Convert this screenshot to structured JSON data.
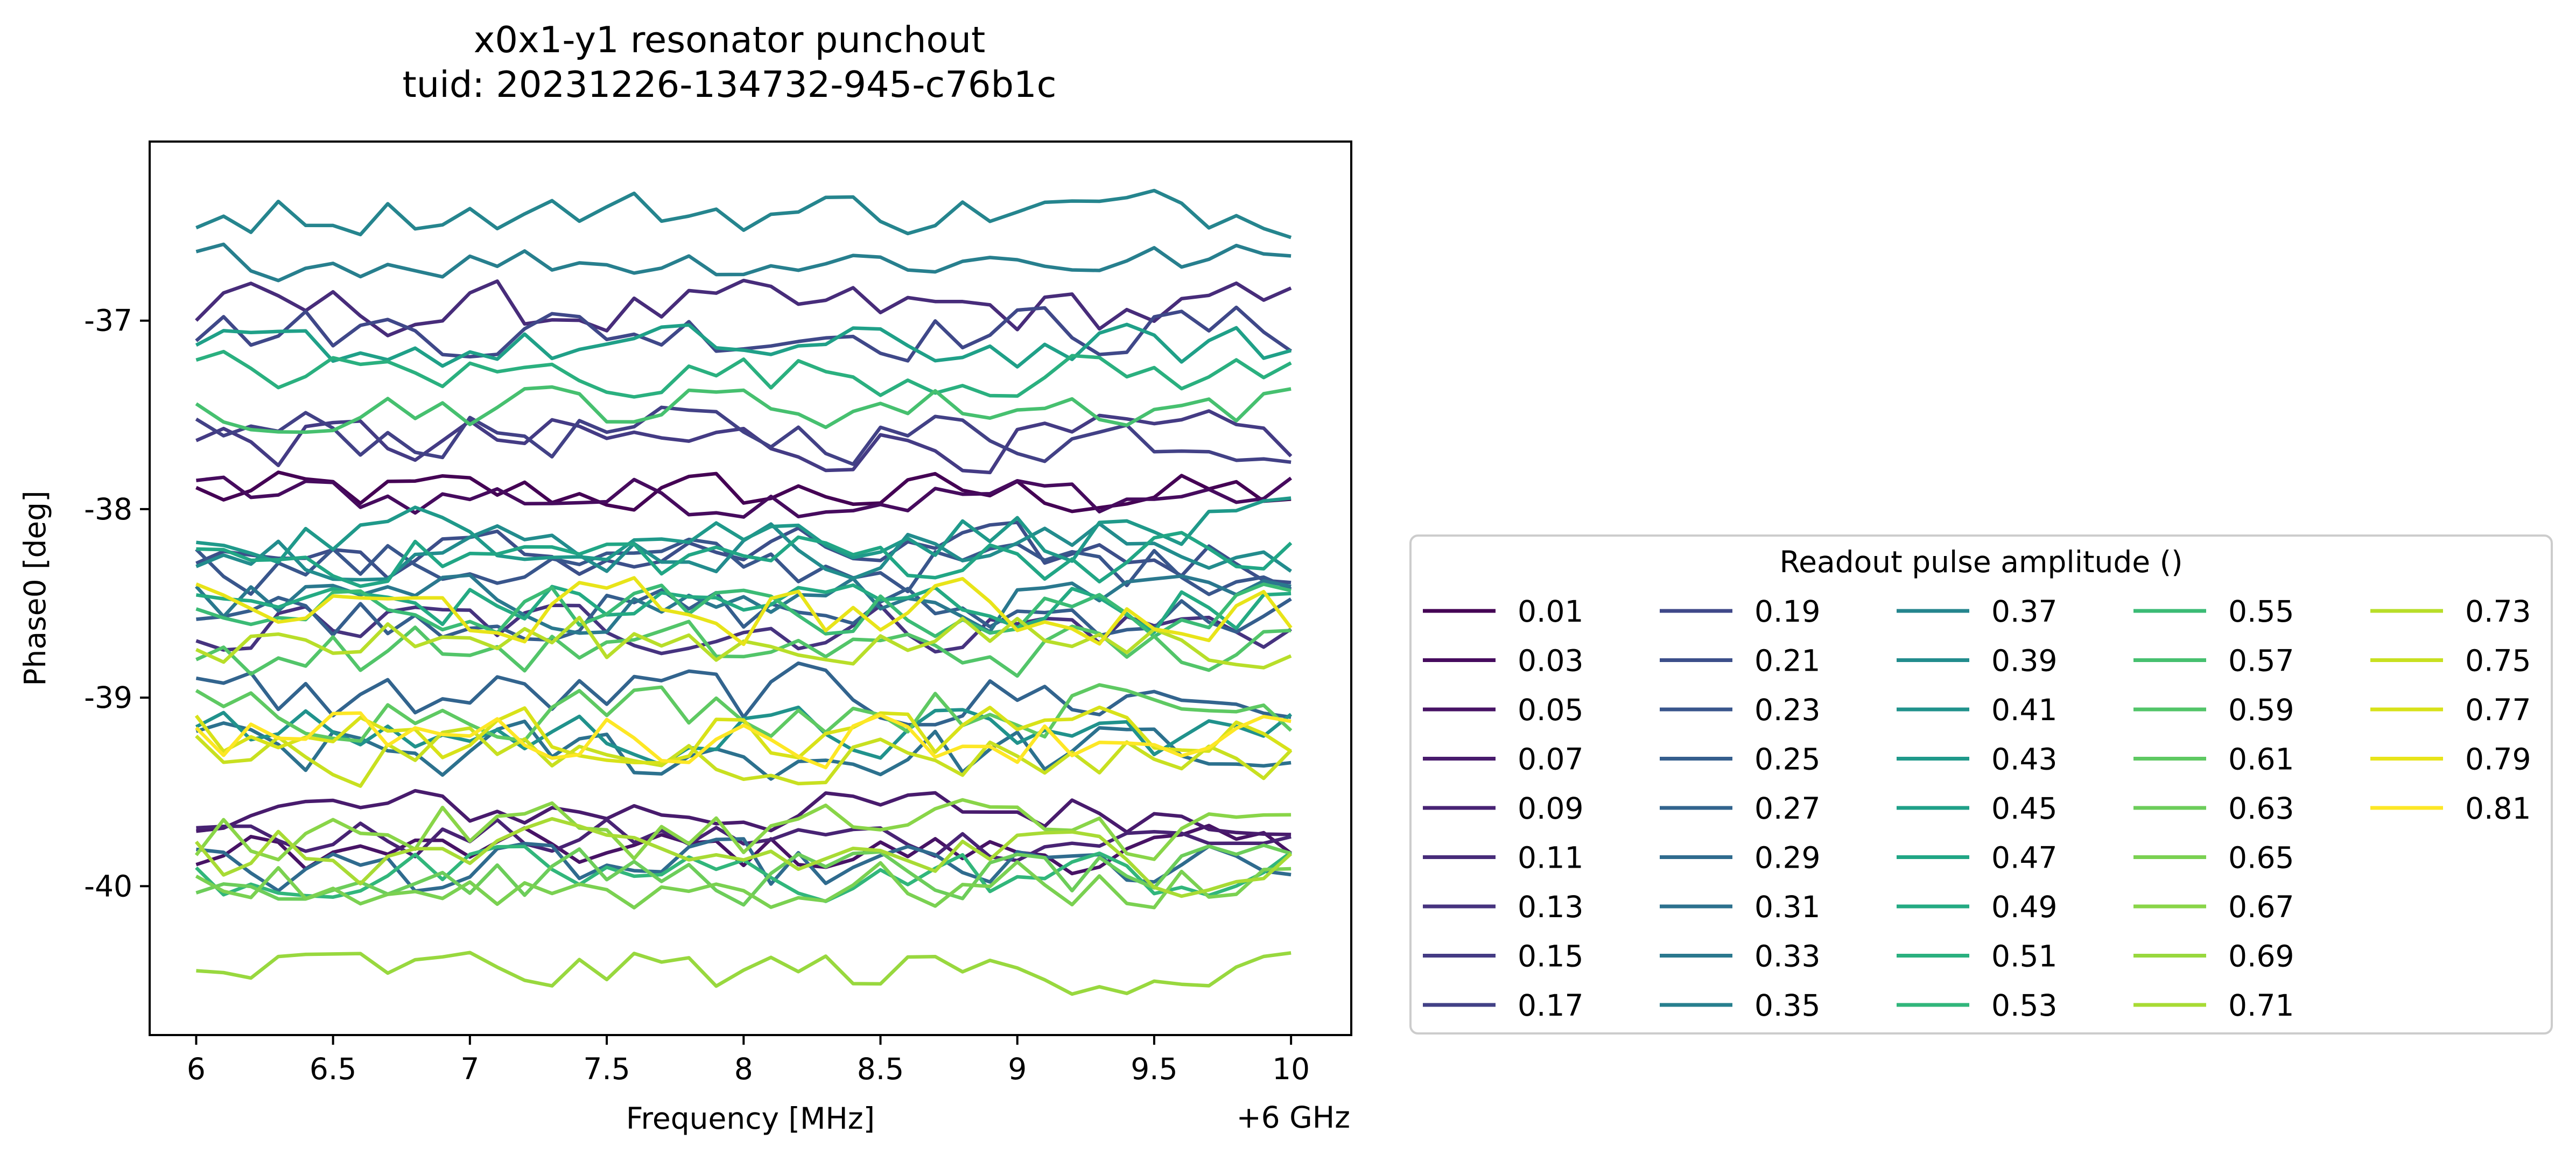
{
  "chart_data": {
    "type": "line",
    "title": "x0x1-y1 resonator punchout",
    "subtitle": "tuid: 20231226-134732-945-c76b1c",
    "xlabel": "Frequency [MHz]",
    "x_offset_label": "+6 GHz",
    "ylabel": "Phase0 [deg]",
    "xlim": [
      5.83,
      10.22
    ],
    "ylim": [
      -40.79,
      -36.05
    ],
    "x_start": 6.0,
    "x_end": 10.0,
    "n_points": 41,
    "x_ticks": [
      6,
      6.5,
      7,
      7.5,
      8,
      8.5,
      9,
      9.5,
      10
    ],
    "x_tick_labels": [
      "6",
      "6.5",
      "7",
      "7.5",
      "8",
      "8.5",
      "9",
      "9.5",
      "10"
    ],
    "y_ticks": [
      -40,
      -39,
      -38,
      -37
    ],
    "y_tick_labels": [
      "-40",
      "-39",
      "-38",
      "-37"
    ],
    "grid": false,
    "colormap": "viridis",
    "legend": {
      "title": "Readout pulse amplitude ()",
      "placement": "outside-right",
      "columns": 5
    },
    "series": [
      {
        "name": "0.01",
        "color": "#440154",
        "mean": -37.92,
        "noise": 0.05
      },
      {
        "name": "0.03",
        "color": "#460b5e",
        "mean": -37.93,
        "noise": 0.05
      },
      {
        "name": "0.05",
        "color": "#471365",
        "mean": -39.82,
        "noise": 0.05
      },
      {
        "name": "0.07",
        "color": "#481b6d",
        "mean": -39.6,
        "noise": 0.05
      },
      {
        "name": "0.09",
        "color": "#482374",
        "mean": -39.75,
        "noise": 0.05
      },
      {
        "name": "0.11",
        "color": "#472c7a",
        "mean": -36.95,
        "noise": 0.06
      },
      {
        "name": "0.13",
        "color": "#46337f",
        "mean": -38.62,
        "noise": 0.06
      },
      {
        "name": "0.15",
        "color": "#443b84",
        "mean": -37.65,
        "noise": 0.06
      },
      {
        "name": "0.17",
        "color": "#424186",
        "mean": -37.6,
        "noise": 0.06
      },
      {
        "name": "0.19",
        "color": "#3f4889",
        "mean": -37.05,
        "noise": 0.06
      },
      {
        "name": "0.21",
        "color": "#3c4f8a",
        "mean": -38.25,
        "noise": 0.06
      },
      {
        "name": "0.23",
        "color": "#39568c",
        "mean": -38.3,
        "noise": 0.06
      },
      {
        "name": "0.25",
        "color": "#355e8d",
        "mean": -38.55,
        "noise": 0.06
      },
      {
        "name": "0.27",
        "color": "#32648e",
        "mean": -39.0,
        "noise": 0.07
      },
      {
        "name": "0.29",
        "color": "#2f6b8e",
        "mean": -39.92,
        "noise": 0.06
      },
      {
        "name": "0.31",
        "color": "#2c718e",
        "mean": -39.3,
        "noise": 0.07
      },
      {
        "name": "0.33",
        "color": "#2a788e",
        "mean": -38.5,
        "noise": 0.06
      },
      {
        "name": "0.35",
        "color": "#277f8e",
        "mean": -36.68,
        "noise": 0.04
      },
      {
        "name": "0.37",
        "color": "#25858e",
        "mean": -36.42,
        "noise": 0.05
      },
      {
        "name": "0.39",
        "color": "#228c8d",
        "mean": -38.2,
        "noise": 0.06
      },
      {
        "name": "0.41",
        "color": "#20928c",
        "mean": -39.2,
        "noise": 0.06
      },
      {
        "name": "0.43",
        "color": "#1f998a",
        "mean": -38.12,
        "noise": 0.06
      },
      {
        "name": "0.45",
        "color": "#1fa088",
        "mean": -37.15,
        "noise": 0.05
      },
      {
        "name": "0.47",
        "color": "#21a685",
        "mean": -38.25,
        "noise": 0.06
      },
      {
        "name": "0.49",
        "color": "#24aa83",
        "mean": -38.5,
        "noise": 0.06
      },
      {
        "name": "0.51",
        "color": "#2ab07f",
        "mean": -37.28,
        "noise": 0.05
      },
      {
        "name": "0.53",
        "color": "#31b67b",
        "mean": -39.95,
        "noise": 0.06
      },
      {
        "name": "0.55",
        "color": "#3bbb75",
        "mean": -38.55,
        "noise": 0.06
      },
      {
        "name": "0.57",
        "color": "#46c06f",
        "mean": -37.45,
        "noise": 0.05
      },
      {
        "name": "0.59",
        "color": "#52c569",
        "mean": -38.75,
        "noise": 0.06
      },
      {
        "name": "0.61",
        "color": "#5ec962",
        "mean": -39.05,
        "noise": 0.06
      },
      {
        "name": "0.63",
        "color": "#6ccd5a",
        "mean": -39.95,
        "noise": 0.06
      },
      {
        "name": "0.65",
        "color": "#7ad151",
        "mean": -40.0,
        "noise": 0.06
      },
      {
        "name": "0.67",
        "color": "#89d548",
        "mean": -39.7,
        "noise": 0.07
      },
      {
        "name": "0.69",
        "color": "#98d83e",
        "mean": -40.45,
        "noise": 0.05
      },
      {
        "name": "0.71",
        "color": "#a8db34",
        "mean": -39.85,
        "noise": 0.07
      },
      {
        "name": "0.73",
        "color": "#b8de29",
        "mean": -38.7,
        "noise": 0.06
      },
      {
        "name": "0.75",
        "color": "#c8e020",
        "mean": -39.3,
        "noise": 0.06
      },
      {
        "name": "0.77",
        "color": "#d8e219",
        "mean": -39.2,
        "noise": 0.06
      },
      {
        "name": "0.79",
        "color": "#e8e419",
        "mean": -38.55,
        "noise": 0.07
      },
      {
        "name": "0.81",
        "color": "#fde725",
        "mean": -39.2,
        "noise": 0.06
      }
    ]
  }
}
